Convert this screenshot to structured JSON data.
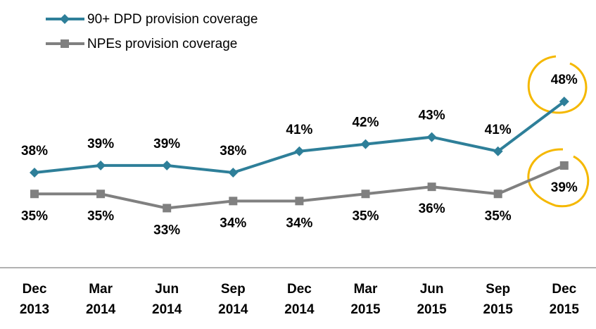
{
  "chart_data": {
    "type": "line",
    "categories": [
      [
        "Dec",
        "2013"
      ],
      [
        "Mar",
        "2014"
      ],
      [
        "Jun",
        "2014"
      ],
      [
        "Sep",
        "2014"
      ],
      [
        "Dec",
        "2014"
      ],
      [
        "Mar",
        "2015"
      ],
      [
        "Jun",
        "2015"
      ],
      [
        "Sep",
        "2015"
      ],
      [
        "Dec",
        "2015"
      ]
    ],
    "series": [
      {
        "name": "90+ DPD provision coverage",
        "color": "#2e7f99",
        "marker": "diamond",
        "values": [
          38,
          39,
          39,
          38,
          41,
          42,
          43,
          41,
          48
        ],
        "value_labels": [
          "38%",
          "39%",
          "39%",
          "38%",
          "41%",
          "42%",
          "43%",
          "41%",
          "48%"
        ]
      },
      {
        "name": "NPEs provision coverage",
        "color": "#808080",
        "marker": "square",
        "values": [
          35,
          35,
          33,
          34,
          34,
          35,
          36,
          35,
          39
        ],
        "value_labels": [
          "35%",
          "35%",
          "33%",
          "34%",
          "34%",
          "35%",
          "36%",
          "35%",
          "39%"
        ]
      }
    ],
    "ylim": [
      26,
      50
    ],
    "legend": "top-left"
  }
}
